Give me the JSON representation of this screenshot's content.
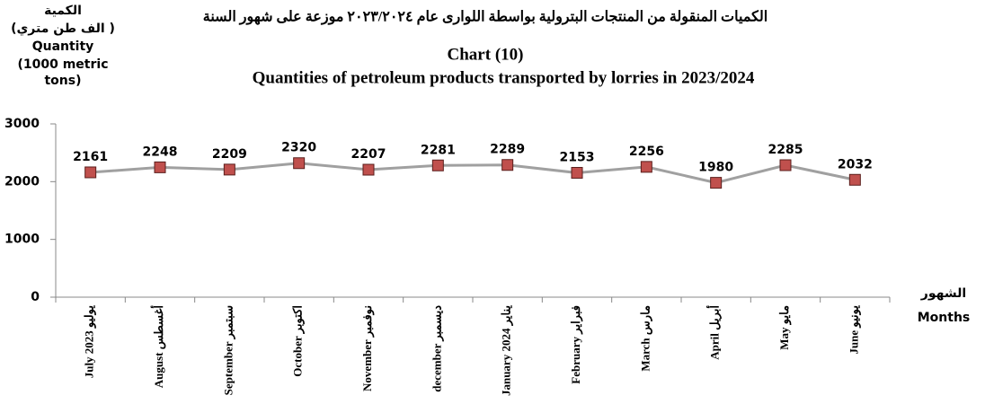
{
  "chart_data": {
    "type": "line",
    "title_ar": "الكميات المنقولة من المنتجات البترولية بواسطة اللوارى عام ٢٠٢٣/٢٠٢٤  موزعة على شهور السنة",
    "title": "Chart (10)",
    "subtitle": "Quantities of petroleum products transported by lorries in 2023/2024",
    "y_label": [
      "الكمية",
      "(الف طن متري )",
      "Quantity",
      "(1000 metric",
      "tons)"
    ],
    "x_label": [
      "الشهور",
      "Months"
    ],
    "categories": [
      "July 2023 يوليو",
      "August أغسطس",
      "September سبتمبر",
      "October اكتوبر",
      "November نوفمبر",
      "december ديسمبر",
      "January 2024 يناير",
      "February فبراير",
      "March مارس",
      "April أبريل",
      "May مايو",
      "June يونيو"
    ],
    "series": [
      {
        "name": "Quantity",
        "color": "#a0a0a0",
        "marker_color": "#c0504d",
        "values": [
          2161,
          2248,
          2209,
          2320,
          2207,
          2281,
          2289,
          2153,
          2256,
          1980,
          2285,
          2032
        ]
      }
    ],
    "ylim": [
      0,
      3000
    ],
    "yticks": [
      0,
      1000,
      2000,
      3000
    ],
    "grid": false
  }
}
